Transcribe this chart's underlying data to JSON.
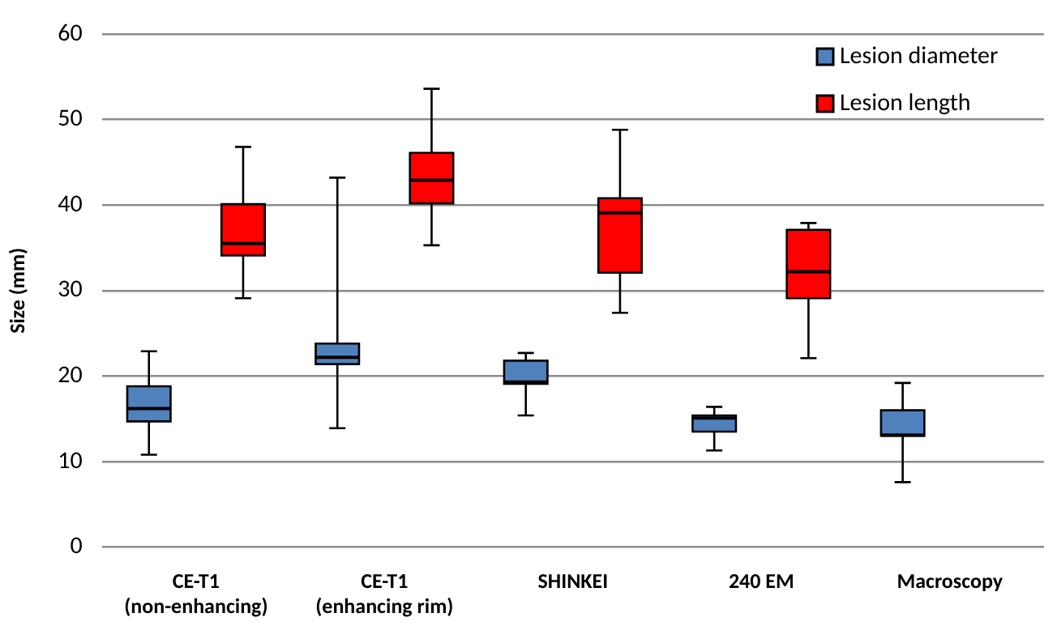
{
  "chart_data": {
    "type": "box",
    "ylabel": "Size (mm)",
    "categories": [
      "CE-T1\n(non-enhancing)",
      "CE-T1\n(enhancing rim)",
      "SHINKEI",
      "240 EM",
      "Macroscopy"
    ],
    "series": [
      {
        "name": "Lesion diameter",
        "color": "#4f81bd",
        "boxes": [
          {
            "low": 10.8,
            "q1": 14.7,
            "median": 16.2,
            "q3": 18.8,
            "high": 22.9
          },
          {
            "low": 13.9,
            "q1": 21.4,
            "median": 22.2,
            "q3": 23.8,
            "high": 43.2
          },
          {
            "low": 15.4,
            "q1": 19.1,
            "median": 19.3,
            "q3": 21.8,
            "high": 22.7
          },
          {
            "low": 11.3,
            "q1": 13.5,
            "median": 15.1,
            "q3": 15.4,
            "high": 16.4
          },
          {
            "low": 7.6,
            "q1": 13,
            "median": 13.1,
            "q3": 16,
            "high": 19.2
          }
        ]
      },
      {
        "name": "Lesion length",
        "color": "#ff0000",
        "boxes": [
          {
            "low": 29.1,
            "q1": 34.1,
            "median": 35.5,
            "q3": 40.1,
            "high": 46.8
          },
          {
            "low": 35.3,
            "q1": 40.2,
            "median": 42.9,
            "q3": 46.1,
            "high": 53.6
          },
          {
            "low": 27.4,
            "q1": 32.1,
            "median": 39.1,
            "q3": 40.8,
            "high": 48.8
          },
          {
            "low": 22.1,
            "q1": 29.1,
            "median": 32.2,
            "q3": 37.1,
            "high": 37.9
          },
          null
        ]
      }
    ],
    "ylim": [
      0,
      60
    ],
    "yticks": [
      0,
      10,
      20,
      30,
      40,
      50,
      60
    ],
    "grid": "y",
    "legend": "top right"
  }
}
